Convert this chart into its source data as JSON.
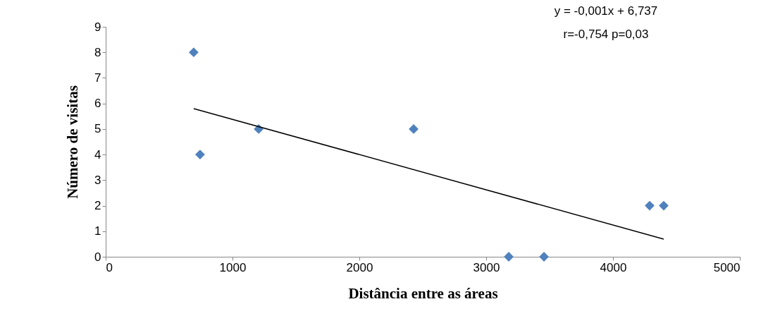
{
  "chart_data": {
    "type": "scatter",
    "xlabel": "Distância entre as áreas",
    "ylabel": "Número de visitas",
    "xlim": [
      0,
      5000
    ],
    "xticks": [
      0,
      1000,
      2000,
      3000,
      4000,
      5000
    ],
    "ylim": [
      0,
      9
    ],
    "yticks": [
      0,
      1,
      2,
      3,
      4,
      5,
      6,
      7,
      8,
      9
    ],
    "grid": false,
    "legend": false,
    "annotations": [
      "y = -0,001x + 6,737",
      "r=-0,754 p=0,03"
    ],
    "series": [
      {
        "type": "scatter",
        "marker": "diamond",
        "color": "#4f81bd",
        "x": [
          694,
          744,
          1206,
          2428,
          3178,
          3456,
          4289,
          4400
        ],
        "values": [
          8,
          4,
          5,
          5,
          0,
          0,
          2,
          2
        ]
      },
      {
        "type": "line",
        "marker": "none",
        "line_style": "solid",
        "color": "#000000",
        "x": [
          694,
          4400
        ],
        "values": [
          5.8,
          0.69
        ]
      }
    ]
  }
}
